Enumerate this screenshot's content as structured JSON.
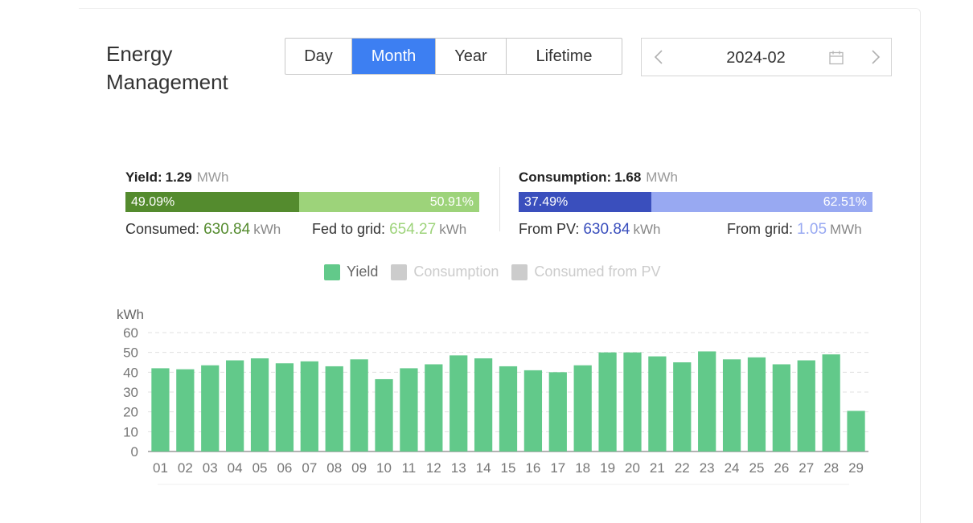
{
  "header": {
    "title": "Energy Management"
  },
  "tabs": [
    {
      "label": "Day",
      "active": false
    },
    {
      "label": "Month",
      "active": true
    },
    {
      "label": "Year",
      "active": false
    },
    {
      "label": "Lifetime",
      "active": false
    }
  ],
  "date_picker": {
    "value": "2024-02",
    "prev_icon": "chevron-left-icon",
    "next_icon": "chevron-right-icon",
    "calendar_icon": "calendar-icon"
  },
  "yield": {
    "label": "Yield:",
    "value": "1.29",
    "unit": "MWh",
    "consumed_pct": "49.09%",
    "fed_pct": "50.91%",
    "consumed_fraction": 0.4909,
    "consumed_label": "Consumed:",
    "consumed_value": "630.84",
    "consumed_unit": "kWh",
    "fed_label": "Fed to grid:",
    "fed_value": "654.27",
    "fed_unit": "kWh",
    "colors": {
      "consumed": "#548b2e",
      "fed": "#9dd37a"
    }
  },
  "consumption": {
    "label": "Consumption:",
    "value": "1.68",
    "unit": "MWh",
    "pv_pct": "37.49%",
    "grid_pct": "62.51%",
    "pv_fraction": 0.3749,
    "pv_label": "From PV:",
    "pv_value": "630.84",
    "pv_unit": "kWh",
    "grid_label": "From grid:",
    "grid_value": "1.05",
    "grid_unit": "MWh",
    "colors": {
      "pv": "#3a4fbd",
      "grid": "#98a9f2"
    }
  },
  "legend": [
    {
      "label": "Yield",
      "color": "#62c98a",
      "active": true
    },
    {
      "label": "Consumption",
      "color": "#cccccc",
      "active": false
    },
    {
      "label": "Consumed from PV",
      "color": "#cccccc",
      "active": false
    }
  ],
  "chart_data": {
    "type": "bar",
    "ylabel": "kWh",
    "ylim": [
      0,
      60
    ],
    "yticks": [
      0,
      10,
      20,
      30,
      40,
      50,
      60
    ],
    "grid": true,
    "categories": [
      "01",
      "02",
      "03",
      "04",
      "05",
      "06",
      "07",
      "08",
      "09",
      "10",
      "11",
      "12",
      "13",
      "14",
      "15",
      "16",
      "17",
      "18",
      "19",
      "20",
      "21",
      "22",
      "23",
      "24",
      "25",
      "26",
      "27",
      "28",
      "29"
    ],
    "series": [
      {
        "name": "Yield",
        "color": "#62c98a",
        "values": [
          42,
          41.5,
          43.5,
          46,
          47,
          44.5,
          45.5,
          43,
          46.5,
          36.5,
          42,
          44,
          48.5,
          47,
          43,
          41,
          40,
          43.5,
          50,
          50,
          48,
          45,
          50.5,
          46.5,
          47.5,
          44,
          46,
          49,
          20.5
        ]
      }
    ]
  }
}
